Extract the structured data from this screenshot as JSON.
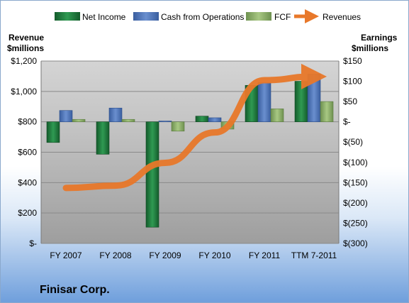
{
  "chart_data": {
    "type": "bar",
    "categories": [
      "FY 2007",
      "FY 2008",
      "FY 2009",
      "FY 2010",
      "FY 2011",
      "TTM 7-2011"
    ],
    "series": [
      {
        "name": "Net Income",
        "axis": "right",
        "color": "#1e7a3e",
        "values": [
          -51,
          -80,
          -260,
          14,
          90,
          100
        ]
      },
      {
        "name": "Cash from Operations",
        "axis": "right",
        "color": "#4a6fb5",
        "values": [
          28,
          34,
          2,
          10,
          97,
          118
        ]
      },
      {
        "name": "FCF",
        "axis": "right",
        "color": "#8fb16a",
        "values": [
          6,
          6,
          -23,
          -18,
          32,
          50
        ]
      },
      {
        "name": "Revenues",
        "axis": "left",
        "type": "line",
        "color": "#e8782a",
        "values": [
          365,
          380,
          530,
          730,
          1074,
          1098
        ]
      }
    ],
    "left_axis": {
      "title_line1": "Revenue",
      "title_line2": "$millions",
      "range": [
        0,
        1200
      ],
      "ticks": [
        "$-",
        "$200",
        "$400",
        "$600",
        "$800",
        "$1,000",
        "$1,200"
      ]
    },
    "right_axis": {
      "title_line1": "Earnings",
      "title_line2": "$millions",
      "range": [
        -300,
        150
      ],
      "ticks": [
        "$(300)",
        "$(250)",
        "$(200)",
        "$(150)",
        "$(100)",
        "$(50)",
        "$-",
        "$50",
        "$100",
        "$150"
      ]
    },
    "grid": true,
    "legend_position": "top"
  },
  "company_name": "Finisar Corp."
}
